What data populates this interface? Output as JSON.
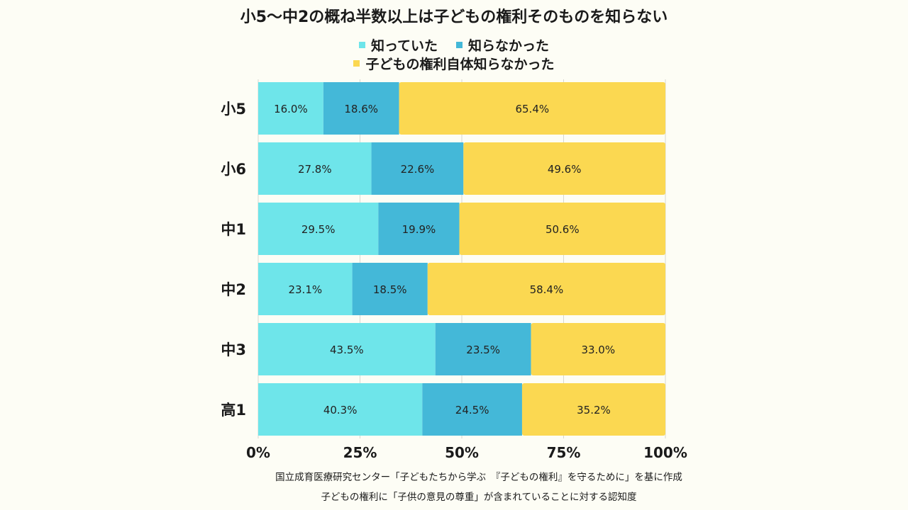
{
  "chart_data": {
    "type": "bar",
    "orientation": "horizontal",
    "stacked": true,
    "title": "小5〜中2の概ね半数以上は子どもの権利そのものを知らない",
    "categories": [
      "小5",
      "小6",
      "中1",
      "中2",
      "中3",
      "高1"
    ],
    "series": [
      {
        "name": "知っていた",
        "color": "#6ee5ea",
        "values": [
          16.0,
          27.8,
          29.5,
          23.1,
          43.5,
          40.3
        ]
      },
      {
        "name": "知らなかった",
        "color": "#44b8d8",
        "values": [
          18.6,
          22.6,
          19.9,
          18.5,
          23.5,
          24.5
        ]
      },
      {
        "name": "子どもの権利自体知らなかった",
        "color": "#fbd851",
        "values": [
          65.4,
          49.6,
          50.6,
          58.4,
          33.0,
          35.2
        ]
      }
    ],
    "data_labels": [
      [
        "16.0%",
        "27.8%",
        "29.5%",
        "23.1%",
        "43.5%",
        "40.3%"
      ],
      [
        "18.6%",
        "22.6%",
        "19.9%",
        "18.5%",
        "23.5%",
        "24.5%"
      ],
      [
        "65.4%",
        "49.6%",
        "50.6%",
        "58.4%",
        "33.0%",
        "35.2%"
      ]
    ],
    "x_ticks": [
      0,
      25,
      50,
      75,
      100
    ],
    "x_tick_labels": [
      "0%",
      "25%",
      "50%",
      "75%",
      "100%"
    ],
    "xlim": [
      0,
      100
    ],
    "grid": true,
    "legend_position": "top-center"
  },
  "notes": {
    "source": "国立成育医療研究センター「子どもたちから学ぶ　『子どもの権利』を守るために」を基に作成",
    "subject": "子どもの権利に「子供の意見の尊重」が含まれていることに対する認知度"
  }
}
